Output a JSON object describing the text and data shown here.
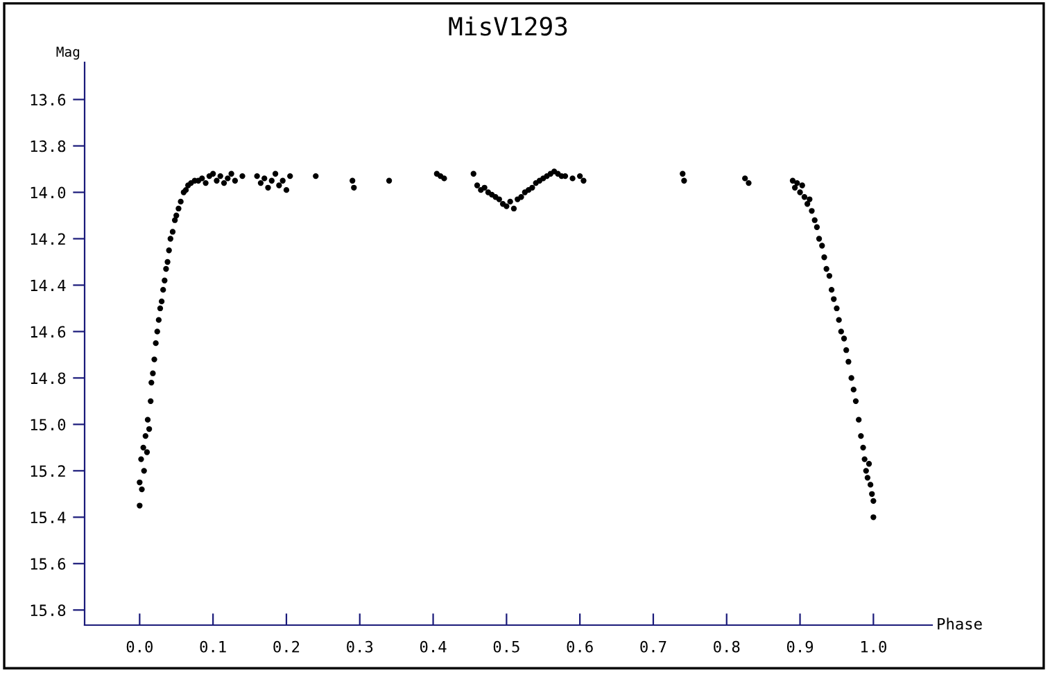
{
  "chart_data": {
    "type": "scatter",
    "title": "MisV1293",
    "xlabel": "Phase",
    "ylabel": "Mag",
    "xlim": [
      -0.075,
      1.08
    ],
    "ylim": [
      15.865,
      13.44
    ],
    "xticks": [
      {
        "value": 0.0,
        "label": "0.0"
      },
      0.1,
      0.2,
      0.3,
      0.4,
      0.5,
      0.6,
      0.7,
      0.8,
      0.9,
      {
        "value": 1.0,
        "label": "1.0"
      }
    ],
    "yticks": [
      13.6,
      13.8,
      {
        "value": 14.0,
        "label": "14.0"
      },
      14.2,
      14.4,
      14.6,
      14.8,
      {
        "value": 15.0,
        "label": "15.0"
      },
      15.2,
      15.4,
      15.6,
      15.8
    ],
    "marker": "circle",
    "grid": false,
    "legend": false,
    "series": [
      {
        "color": "#000000",
        "x": [
          0.0,
          0.0,
          0.002,
          0.003,
          0.005,
          0.006,
          0.008,
          0.01,
          0.011,
          0.013,
          0.015,
          0.016,
          0.018,
          0.02,
          0.022,
          0.024,
          0.026,
          0.028,
          0.03,
          0.032,
          0.034,
          0.036,
          0.038,
          0.04,
          0.042,
          0.045,
          0.048,
          0.05,
          0.053,
          0.056,
          0.06,
          0.063,
          0.066,
          0.07,
          0.075,
          0.08,
          0.085,
          0.09,
          0.095,
          0.1,
          0.105,
          0.11,
          0.115,
          0.12,
          0.125,
          0.13,
          0.14,
          0.16,
          0.165,
          0.17,
          0.175,
          0.18,
          0.185,
          0.19,
          0.195,
          0.2,
          0.205,
          0.24,
          0.29,
          0.292,
          0.34,
          0.405,
          0.41,
          0.415,
          0.455,
          0.46,
          0.465,
          0.47,
          0.475,
          0.48,
          0.485,
          0.49,
          0.495,
          0.5,
          0.505,
          0.51,
          0.515,
          0.52,
          0.525,
          0.53,
          0.535,
          0.54,
          0.545,
          0.55,
          0.555,
          0.56,
          0.565,
          0.57,
          0.575,
          0.58,
          0.59,
          0.6,
          0.605,
          0.74,
          0.742,
          0.825,
          0.83,
          0.89,
          0.893,
          0.896,
          0.9,
          0.903,
          0.906,
          0.91,
          0.913,
          0.916,
          0.92,
          0.923,
          0.926,
          0.93,
          0.933,
          0.936,
          0.94,
          0.943,
          0.946,
          0.95,
          0.953,
          0.956,
          0.96,
          0.963,
          0.966,
          0.97,
          0.973,
          0.976,
          0.98,
          0.983,
          0.986,
          0.988,
          0.99,
          0.992,
          0.994,
          0.996,
          0.998,
          1.0,
          1.0
        ],
        "values": [
          15.35,
          15.25,
          15.15,
          15.28,
          15.1,
          15.2,
          15.05,
          15.12,
          14.98,
          15.02,
          14.9,
          14.82,
          14.78,
          14.72,
          14.65,
          14.6,
          14.55,
          14.5,
          14.47,
          14.42,
          14.38,
          14.33,
          14.3,
          14.25,
          14.2,
          14.17,
          14.12,
          14.1,
          14.07,
          14.04,
          14.0,
          13.99,
          13.97,
          13.96,
          13.95,
          13.95,
          13.94,
          13.96,
          13.93,
          13.92,
          13.95,
          13.93,
          13.96,
          13.94,
          13.92,
          13.95,
          13.93,
          13.93,
          13.96,
          13.94,
          13.98,
          13.95,
          13.92,
          13.97,
          13.95,
          13.99,
          13.93,
          13.93,
          13.95,
          13.98,
          13.95,
          13.92,
          13.93,
          13.94,
          13.92,
          13.97,
          13.99,
          13.98,
          14.0,
          14.01,
          14.02,
          14.03,
          14.05,
          14.06,
          14.04,
          14.07,
          14.03,
          14.02,
          14.0,
          13.99,
          13.98,
          13.96,
          13.95,
          13.94,
          13.93,
          13.92,
          13.91,
          13.92,
          13.93,
          13.93,
          13.94,
          13.93,
          13.95,
          13.92,
          13.95,
          13.94,
          13.96,
          13.95,
          13.98,
          13.96,
          14.0,
          13.97,
          14.02,
          14.05,
          14.03,
          14.08,
          14.12,
          14.15,
          14.2,
          14.23,
          14.28,
          14.33,
          14.36,
          14.42,
          14.46,
          14.5,
          14.55,
          14.6,
          14.63,
          14.68,
          14.73,
          14.8,
          14.85,
          14.9,
          14.98,
          15.05,
          15.1,
          15.15,
          15.2,
          15.23,
          15.17,
          15.26,
          15.3,
          15.33,
          15.4
        ]
      }
    ]
  }
}
